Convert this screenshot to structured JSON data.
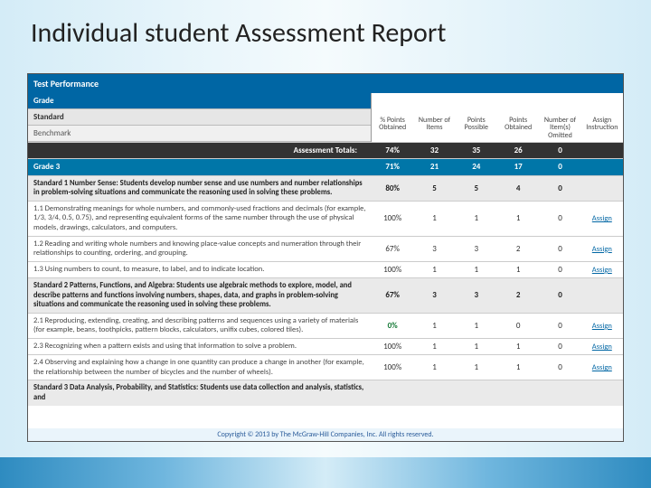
{
  "slide": {
    "title": "Individual student Assessment Report"
  },
  "panel": {
    "sectionHeader": "Test Performance",
    "legend": {
      "grade": "Grade",
      "standard": "Standard",
      "benchmark": "Benchmark"
    },
    "columns": {
      "pctObtained": "% Points Obtained",
      "numItems": "Number of Items",
      "ptsPossible": "Points Possible",
      "ptsObtained": "Points Obtained",
      "numOmitted": "Number of Item(s) Omitted",
      "assign": "Assign Instruction"
    },
    "totals": {
      "label": "Assessment Totals:",
      "pct": "74%",
      "items": "32",
      "possible": "35",
      "obtained": "26",
      "omitted": "0"
    },
    "gradeRow": {
      "label": "Grade 3",
      "pct": "71%",
      "items": "21",
      "possible": "24",
      "obtained": "17",
      "omitted": "0"
    },
    "rows": [
      {
        "type": "standard",
        "label": "Standard 1 Number Sense: Students develop number sense and use numbers and number relationships in problem-solving situations and communicate the reasoning used in solving these problems.",
        "pct": "80%",
        "items": "5",
        "possible": "5",
        "obtained": "4",
        "omitted": "0",
        "assign": ""
      },
      {
        "type": "benchmark",
        "label": "1.1 Demonstrating meanings for whole numbers, and commonly-used fractions and decimals (for example, 1/3, 3/4, 0.5, 0.75), and representing equivalent forms of the same number through the use of physical models, drawings, calculators, and computers.",
        "pct": "100%",
        "items": "1",
        "possible": "1",
        "obtained": "1",
        "omitted": "0",
        "assign": "Assign"
      },
      {
        "type": "benchmark",
        "label": "1.2 Reading and writing whole numbers and knowing place-value concepts and numeration through their relationships to counting, ordering, and grouping.",
        "pct": "67%",
        "items": "3",
        "possible": "3",
        "obtained": "2",
        "omitted": "0",
        "assign": "Assign"
      },
      {
        "type": "benchmark",
        "label": "1.3 Using numbers to count, to measure, to label, and to indicate location.",
        "pct": "100%",
        "items": "1",
        "possible": "1",
        "obtained": "1",
        "omitted": "0",
        "assign": "Assign"
      },
      {
        "type": "standard",
        "label": "Standard 2 Patterns, Functions, and Algebra: Students use algebraic methods to explore, model, and describe patterns and functions involving numbers, shapes, data, and graphs in problem-solving situations and communicate the reasoning used in solving these problems.",
        "pct": "67%",
        "items": "3",
        "possible": "3",
        "obtained": "2",
        "omitted": "0",
        "assign": ""
      },
      {
        "type": "benchmark",
        "label": "2.1 Reproducing, extending, creating, and describing patterns and sequences using a variety of materials (for example, beans, toothpicks, pattern blocks, calculators, unifix cubes, colored tiles).",
        "pct": "0%",
        "items": "1",
        "possible": "1",
        "obtained": "0",
        "omitted": "0",
        "assign": "Assign",
        "zeroPct": true
      },
      {
        "type": "benchmark",
        "label": "2.3 Recognizing when a pattern exists and using that information to solve a problem.",
        "pct": "100%",
        "items": "1",
        "possible": "1",
        "obtained": "1",
        "omitted": "0",
        "assign": "Assign"
      },
      {
        "type": "benchmark",
        "label": "2.4 Observing and explaining how a change in one quantity can produce a change in another (for example, the relationship between the number of bicycles and the number of wheels).",
        "pct": "100%",
        "items": "1",
        "possible": "1",
        "obtained": "1",
        "omitted": "0",
        "assign": "Assign"
      },
      {
        "type": "standard",
        "label": "Standard 3 Data Analysis, Probability, and Statistics: Students use data collection and analysis, statistics, and",
        "pct": "",
        "items": "",
        "possible": "",
        "obtained": "",
        "omitted": "",
        "assign": ""
      }
    ],
    "copyright": "Copyright © 2013 by The McGraw-Hill Companies, Inc. All rights reserved."
  },
  "colors": {
    "headerBlue": "#0066a4",
    "gradeBlue": "#0076a8",
    "totalsDark": "#333333",
    "standardGrey": "#eaeaea",
    "linkBlue": "#0066a4",
    "zeroGreen": "#167a37"
  }
}
